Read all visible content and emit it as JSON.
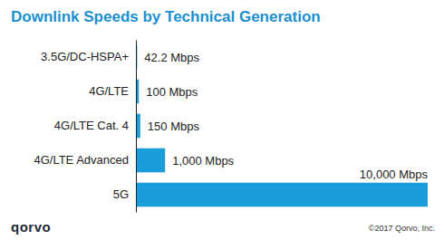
{
  "chart_data": {
    "type": "bar",
    "title": "Downlink Speeds by Technical Generation",
    "orientation": "horizontal",
    "categories": [
      "3.5G/DC-HSPA+",
      "4G/LTE",
      "4G/LTE Cat. 4",
      "4G/LTE Advanced",
      "5G"
    ],
    "values": [
      42.2,
      100,
      150,
      1000,
      10000
    ],
    "value_labels": [
      "42.2 Mbps",
      "100 Mbps",
      "150 Mbps",
      "1,000 Mbps",
      "10,000 Mbps"
    ],
    "data_labels": true,
    "color": "#1c9ddb",
    "xlim": [
      0,
      10000
    ],
    "tick_labels": "y",
    "grid": false,
    "annotations": [
      "qorvo",
      "©2017 Qorvo, Inc."
    ]
  }
}
